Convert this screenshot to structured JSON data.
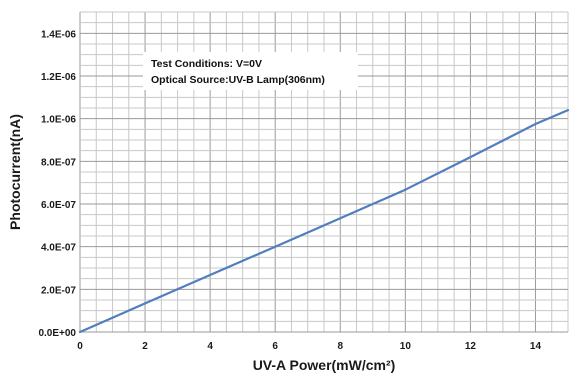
{
  "chart_data": {
    "type": "line",
    "title": "",
    "xlabel": "UV-A Power(mW/cm²)",
    "ylabel": "Photocurrent(nA)",
    "xlim": [
      0,
      15
    ],
    "ylim": [
      0,
      1.5e-06
    ],
    "x_ticks": [
      0,
      2,
      4,
      6,
      8,
      10,
      12,
      14
    ],
    "x_tick_labels": [
      "0",
      "2",
      "4",
      "6",
      "8",
      "10",
      "12",
      "14"
    ],
    "y_ticks": [
      0,
      2e-07,
      4e-07,
      6e-07,
      8e-07,
      1e-06,
      1.2e-06,
      1.4e-06
    ],
    "y_tick_labels": [
      "0.0E+00",
      "2.0E-07",
      "4.0E-07",
      "6.0E-07",
      "8.0E-07",
      "1.0E-06",
      "1.2E-06",
      "1.4E-06"
    ],
    "grid": true,
    "series": [
      {
        "color": "#4f7fbf",
        "x": [
          0,
          2,
          4,
          6,
          8,
          10,
          12,
          14,
          15
        ],
        "y": [
          0,
          1.34e-07,
          2.67e-07,
          4e-07,
          5.33e-07,
          6.67e-07,
          8.2e-07,
          9.75e-07,
          1.04e-06
        ]
      }
    ],
    "annotations": [
      "Test Conditions: V=0V",
      "Optical Source:UV-B Lamp(306nm)"
    ],
    "annotation_box": "top-left"
  }
}
